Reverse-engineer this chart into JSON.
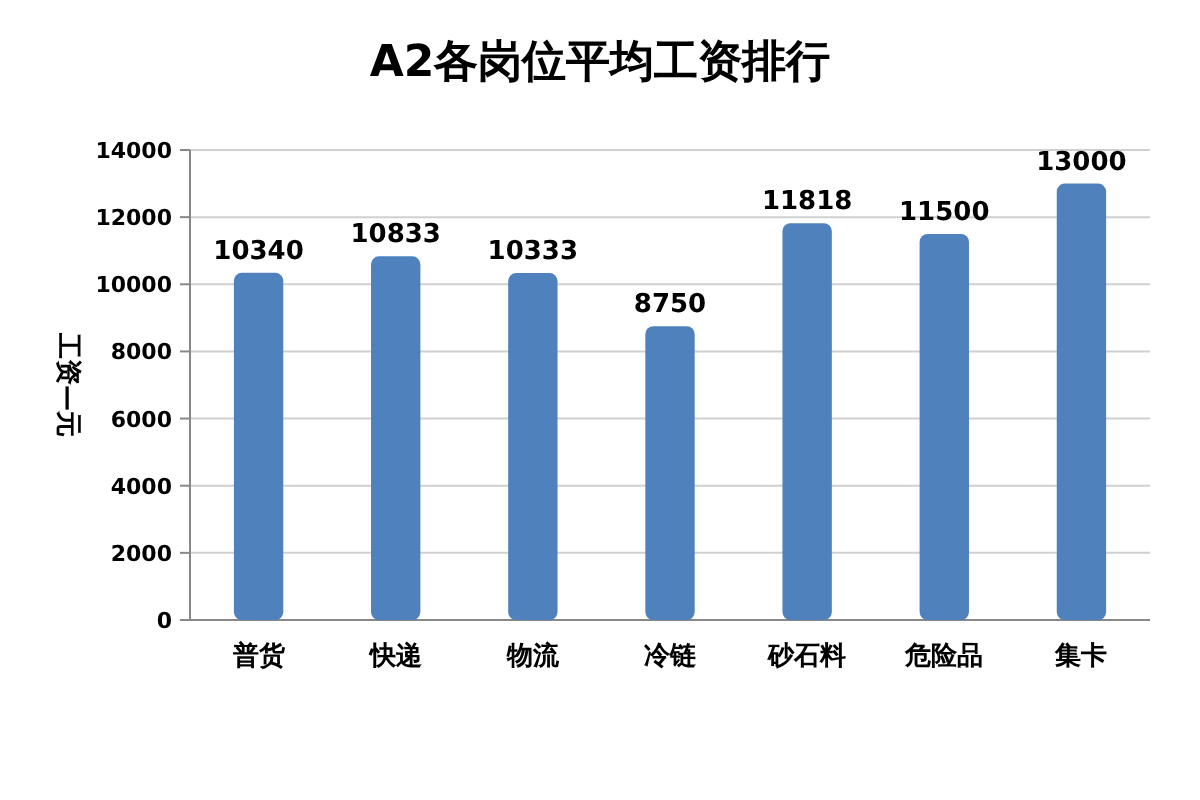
{
  "chart_data": {
    "type": "bar",
    "title": "A2各岗位平均工资排行",
    "ylabel": "工资—元",
    "categories": [
      "普货",
      "快递",
      "物流",
      "冷链",
      "砂石料",
      "危险品",
      "集卡"
    ],
    "values": [
      10340,
      10833,
      10333,
      8750,
      11818,
      11500,
      13000
    ],
    "color": "#4f81bd",
    "ylim": [
      0,
      14000
    ],
    "yticks": [
      0,
      2000,
      4000,
      6000,
      8000,
      10000,
      12000,
      14000
    ],
    "grid": "y",
    "data_labels": true
  }
}
